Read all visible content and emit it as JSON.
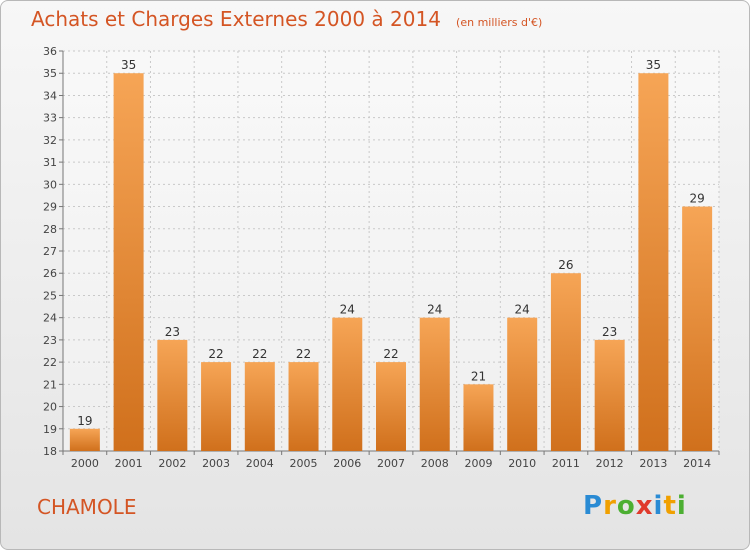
{
  "header": {
    "title": "Achats et Charges Externes 2000 à 2014",
    "unit": "(en milliers d'€)"
  },
  "footer": {
    "place": "CHAMOLE",
    "logo": "Proxiti",
    "logo_letters": [
      {
        "char": "P",
        "color": "#2a8bd4"
      },
      {
        "char": "r",
        "color": "#f0a000"
      },
      {
        "char": "o",
        "color": "#4caf32"
      },
      {
        "char": "x",
        "color": "#e03a2c"
      },
      {
        "char": "i",
        "color": "#2a8bd4"
      },
      {
        "char": "t",
        "color": "#f0a000"
      },
      {
        "char": "i",
        "color": "#4caf32"
      }
    ]
  },
  "chart_data": {
    "type": "bar",
    "categories": [
      "2000",
      "2001",
      "2002",
      "2003",
      "2004",
      "2005",
      "2006",
      "2007",
      "2008",
      "2009",
      "2010",
      "2011",
      "2012",
      "2013",
      "2014"
    ],
    "values": [
      19,
      35,
      23,
      22,
      22,
      22,
      24,
      22,
      24,
      21,
      24,
      26,
      23,
      35,
      29
    ],
    "ylim": [
      18,
      36
    ],
    "yticks": [
      18,
      19,
      20,
      21,
      22,
      23,
      24,
      25,
      26,
      27,
      28,
      29,
      30,
      31,
      32,
      33,
      34,
      35,
      36
    ],
    "grid": true,
    "bar_color_top": "#f6a556",
    "bar_color_bottom": "#d0701c",
    "label_color": "#333333"
  }
}
